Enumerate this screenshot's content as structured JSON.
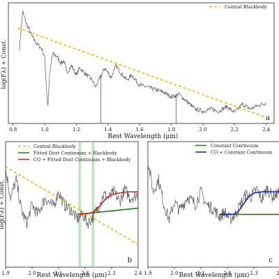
{
  "chart_data": [
    {
      "panel": "a",
      "type": "line",
      "title": "",
      "xlabel": "Rest Wavelength (μm)",
      "ylabel": "log(Fλ) + Const.",
      "xlim": [
        0.77,
        2.45
      ],
      "ylim": [
        0,
        1
      ],
      "xticks": [
        "0.8",
        "1.0",
        "1.2",
        "1.4",
        "1.6",
        "1.8",
        "2.0",
        "2.2",
        "2.4"
      ],
      "yticks": [],
      "legend": {
        "position": "top-right",
        "entries": [
          "Central Blackbody"
        ]
      },
      "series": [
        {
          "name": "",
          "color": "#555555",
          "style": "solid",
          "anchors": [
            [
              0.84,
              0.62
            ],
            [
              0.86,
              0.93
            ],
            [
              0.88,
              0.84
            ],
            [
              0.9,
              0.78
            ],
            [
              0.92,
              0.72
            ],
            [
              0.95,
              0.66
            ],
            [
              0.98,
              0.62
            ],
            [
              1.0,
              0.55
            ],
            [
              1.01,
              0.3
            ],
            [
              1.02,
              0.15
            ],
            [
              1.03,
              0.4
            ],
            [
              1.05,
              0.58
            ],
            [
              1.08,
              0.55
            ],
            [
              1.1,
              0.5
            ],
            [
              1.12,
              0.52
            ],
            [
              1.14,
              0.42
            ],
            [
              1.17,
              0.48
            ],
            [
              1.2,
              0.4
            ],
            [
              1.22,
              0.46
            ],
            [
              1.25,
              0.42
            ],
            [
              1.3,
              0.36
            ],
            [
              1.32,
              0.3
            ],
            [
              1.35,
              0.38
            ],
            [
              1.38,
              0.46
            ],
            [
              1.42,
              0.38
            ],
            [
              1.45,
              0.48
            ],
            [
              1.48,
              0.42
            ],
            [
              1.52,
              0.36
            ],
            [
              1.55,
              0.4
            ],
            [
              1.6,
              0.32
            ],
            [
              1.65,
              0.3
            ],
            [
              1.7,
              0.28
            ],
            [
              1.75,
              0.26
            ],
            [
              1.8,
              0.22
            ],
            [
              1.85,
              0.24
            ],
            [
              1.9,
              0.18
            ],
            [
              1.95,
              0.12
            ],
            [
              2.0,
              0.1
            ],
            [
              2.05,
              0.12
            ],
            [
              2.1,
              0.1
            ],
            [
              2.15,
              0.14
            ],
            [
              2.2,
              0.09
            ],
            [
              2.25,
              0.16
            ],
            [
              2.3,
              0.12
            ],
            [
              2.35,
              0.15
            ],
            [
              2.4,
              0.17
            ]
          ]
        },
        {
          "name": "Central Blackbody",
          "color": "#d9c22a",
          "style": "dashed",
          "anchors": [
            [
              0.83,
              0.79
            ],
            [
              2.4,
              0.05
            ]
          ]
        }
      ],
      "annotations": [
        {
          "type": "vline",
          "x": 1.355,
          "y0": 0.0,
          "y1": 0.4
        },
        {
          "type": "vline",
          "x": 1.83,
          "y0": 0.0,
          "y1": 0.24
        }
      ]
    },
    {
      "panel": "b",
      "type": "line",
      "title": "",
      "xlabel": "Rest Wavelength (μm)",
      "ylabel": "log(Fλ) + Const.",
      "xlim": [
        1.9,
        2.4
      ],
      "ylim": [
        0,
        1
      ],
      "xticks": [
        "1.9",
        "2.0",
        "2.1",
        "2.2",
        "2.3",
        "2.4"
      ],
      "yticks": [],
      "legend": {
        "position": "top-left",
        "entries": [
          "Central Blackbody",
          "Fitted Dust Continuum + Blackbody",
          "CO + Fitted Dust Continuum + Blackbody"
        ]
      },
      "shaded_regions": [
        {
          "x0": 2.175,
          "x1": 2.185,
          "color": "#a8d4a8"
        },
        {
          "x0": 2.225,
          "x1": 2.235,
          "color": "#a8d4a8"
        }
      ],
      "series": [
        {
          "name": "",
          "color": "#555555",
          "style": "solid",
          "anchors": [
            [
              1.9,
              0.78
            ],
            [
              1.92,
              0.55
            ],
            [
              1.94,
              0.7
            ],
            [
              1.96,
              0.45
            ],
            [
              1.98,
              0.35
            ],
            [
              2.0,
              0.5
            ],
            [
              2.02,
              0.42
            ],
            [
              2.05,
              0.55
            ],
            [
              2.08,
              0.48
            ],
            [
              2.1,
              0.6
            ],
            [
              2.12,
              0.5
            ],
            [
              2.15,
              0.45
            ],
            [
              2.17,
              0.38
            ],
            [
              2.19,
              0.42
            ],
            [
              2.21,
              0.35
            ],
            [
              2.23,
              0.4
            ],
            [
              2.25,
              0.48
            ],
            [
              2.27,
              0.58
            ],
            [
              2.29,
              0.55
            ],
            [
              2.31,
              0.6
            ],
            [
              2.33,
              0.52
            ],
            [
              2.35,
              0.62
            ],
            [
              2.37,
              0.55
            ],
            [
              2.4,
              0.58
            ]
          ]
        },
        {
          "name": "Central Blackbody",
          "color": "#d9c22a",
          "style": "dashed",
          "anchors": [
            [
              1.9,
              0.8
            ],
            [
              2.4,
              0.18
            ]
          ]
        },
        {
          "name": "Fitted Dust Continuum + Blackbody",
          "color": "#1e7a1e",
          "style": "solid",
          "anchors": [
            [
              2.17,
              0.42
            ],
            [
              2.4,
              0.47
            ]
          ]
        },
        {
          "name": "CO + Fitted Dust Continuum + Blackbody",
          "color": "#d62020",
          "style": "solid",
          "anchors": [
            [
              2.17,
              0.42
            ],
            [
              2.22,
              0.43
            ],
            [
              2.24,
              0.45
            ],
            [
              2.26,
              0.5
            ],
            [
              2.28,
              0.55
            ],
            [
              2.3,
              0.58
            ],
            [
              2.33,
              0.59
            ],
            [
              2.36,
              0.6
            ],
            [
              2.4,
              0.6
            ]
          ]
        }
      ],
      "panel_label": "b"
    },
    {
      "panel": "c",
      "type": "line",
      "title": "",
      "xlabel": "Rest Wavelength (μm)",
      "ylabel": "",
      "xlim": [
        1.9,
        2.4
      ],
      "ylim": [
        0,
        1
      ],
      "xticks": [
        "1.9",
        "2.0",
        "2.1",
        "2.2",
        "2.3",
        "2.4"
      ],
      "yticks": [],
      "legend": {
        "position": "top-right",
        "entries": [
          "Constant Continuum",
          "CO + Constant Continuum"
        ]
      },
      "series": [
        {
          "name": "",
          "color": "#555555",
          "style": "solid",
          "anchors": [
            [
              1.9,
              0.85
            ],
            [
              1.92,
              0.6
            ],
            [
              1.94,
              0.7
            ],
            [
              1.96,
              0.5
            ],
            [
              1.98,
              0.38
            ],
            [
              2.0,
              0.52
            ],
            [
              2.02,
              0.45
            ],
            [
              2.05,
              0.56
            ],
            [
              2.08,
              0.5
            ],
            [
              2.1,
              0.6
            ],
            [
              2.12,
              0.5
            ],
            [
              2.15,
              0.46
            ],
            [
              2.17,
              0.4
            ],
            [
              2.19,
              0.44
            ],
            [
              2.21,
              0.38
            ],
            [
              2.23,
              0.42
            ],
            [
              2.25,
              0.5
            ],
            [
              2.27,
              0.58
            ],
            [
              2.29,
              0.56
            ],
            [
              2.31,
              0.62
            ],
            [
              2.33,
              0.54
            ],
            [
              2.35,
              0.63
            ],
            [
              2.37,
              0.56
            ],
            [
              2.4,
              0.6
            ]
          ]
        },
        {
          "name": "Constant Continuum",
          "color": "#1e7a1e",
          "style": "solid",
          "anchors": [
            [
              2.17,
              0.42
            ],
            [
              2.4,
              0.42
            ]
          ]
        },
        {
          "name": "CO + Constant Continuum",
          "color": "#1a1ad0",
          "style": "solid",
          "anchors": [
            [
              2.17,
              0.42
            ],
            [
              2.22,
              0.42
            ],
            [
              2.24,
              0.44
            ],
            [
              2.26,
              0.5
            ],
            [
              2.28,
              0.56
            ],
            [
              2.3,
              0.59
            ],
            [
              2.33,
              0.6
            ],
            [
              2.36,
              0.6
            ],
            [
              2.4,
              0.6
            ]
          ]
        }
      ],
      "panel_label": "c"
    }
  ]
}
